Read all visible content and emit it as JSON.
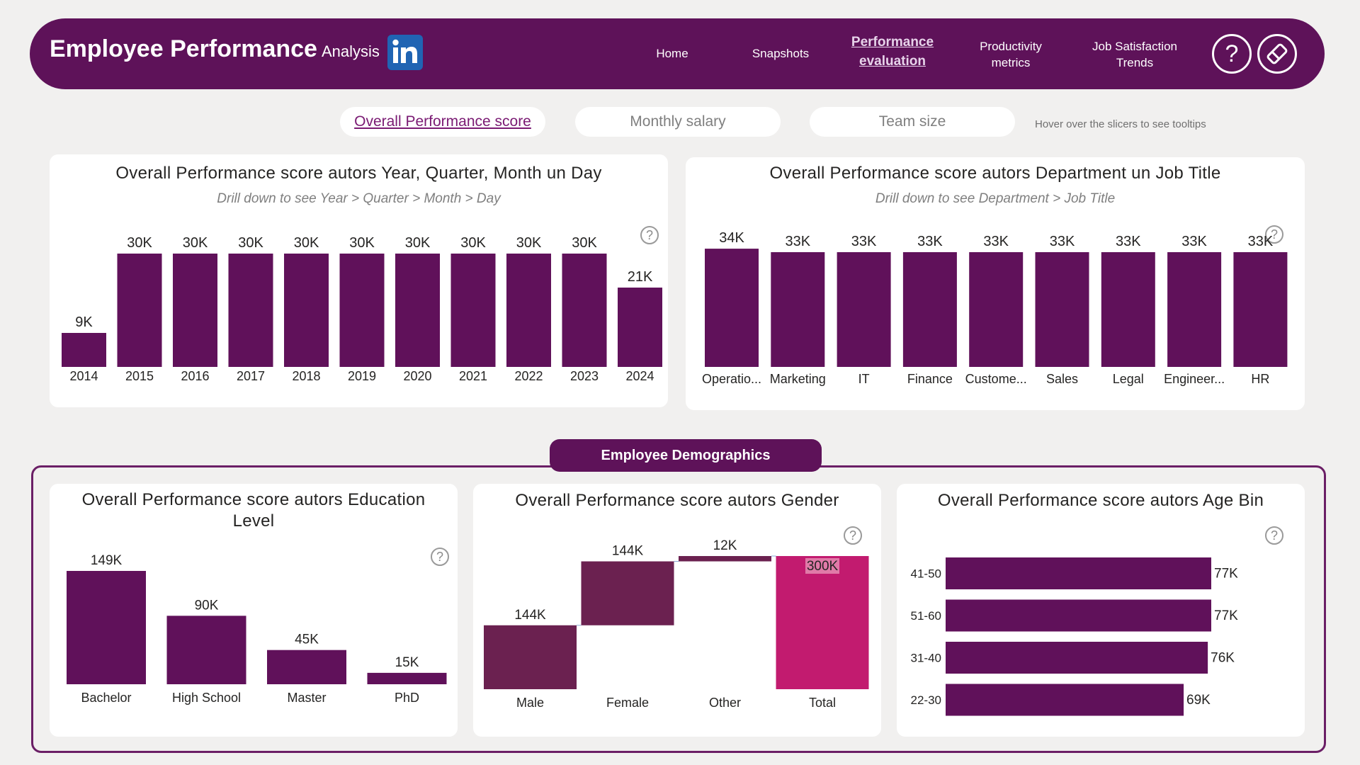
{
  "header": {
    "title_bold": "Employee Performance",
    "title_light": "Analysis",
    "nav": [
      {
        "label": "Home"
      },
      {
        "label": "Snapshots"
      },
      {
        "label": "Performance evaluation",
        "line1": "Performance",
        "line2": "evaluation"
      },
      {
        "label": "Productivity metrics",
        "line1": "Productivity",
        "line2": "metrics"
      },
      {
        "label": "Job Satisfaction Trends",
        "line1": "Job Satisfaction",
        "line2": "Trends"
      }
    ],
    "help_glyph": "?",
    "icons": [
      "linkedin-icon",
      "help-icon",
      "eraser-icon"
    ]
  },
  "slicers": {
    "items": [
      "Overall Performance score",
      "Monthly salary",
      "Team size"
    ],
    "hint": "Hover over the slicers to see tooltips"
  },
  "section_label": "Employee Demographics",
  "colors": {
    "header": "#5e1259",
    "bar": "#60115a",
    "waterfall_decrease": "#6b2150",
    "waterfall_total": "#c21b6f"
  },
  "charts": {
    "year": {
      "title": "Overall Performance score autors Year, Quarter, Month un Day",
      "subtitle": "Drill down to see Year > Quarter > Month > Day"
    },
    "department": {
      "title": "Overall Performance score autors Department un Job Title",
      "subtitle": "Drill down to see Department > Job Title"
    },
    "education": {
      "title_line1": "Overall Performance score autors Education",
      "title_line2": "Level"
    },
    "gender": {
      "title": "Overall Performance score autors Gender"
    },
    "age": {
      "title": "Overall Performance score autors Age Bin"
    }
  },
  "chart_data": [
    {
      "type": "bar",
      "title": "Overall Performance score autors Year, Quarter, Month un Day",
      "categories": [
        "2014",
        "2015",
        "2016",
        "2017",
        "2018",
        "2019",
        "2020",
        "2021",
        "2022",
        "2023",
        "2024"
      ],
      "values": [
        9000,
        30000,
        30000,
        30000,
        30000,
        30000,
        30000,
        30000,
        30000,
        30000,
        21000
      ],
      "labels": [
        "9K",
        "30K",
        "30K",
        "30K",
        "30K",
        "30K",
        "30K",
        "30K",
        "30K",
        "30K",
        "21K"
      ]
    },
    {
      "type": "bar",
      "title": "Overall Performance score autors Department un Job Title",
      "categories": [
        "Operatio...",
        "Marketing",
        "IT",
        "Finance",
        "Custome...",
        "Sales",
        "Legal",
        "Engineer...",
        "HR"
      ],
      "values": [
        34000,
        33000,
        33000,
        33000,
        33000,
        33000,
        33000,
        33000,
        33000
      ],
      "labels": [
        "34K",
        "33K",
        "33K",
        "33K",
        "33K",
        "33K",
        "33K",
        "33K",
        "33K"
      ]
    },
    {
      "type": "bar",
      "title": "Overall Performance score autors Education Level",
      "categories": [
        "Bachelor",
        "High School",
        "Master",
        "PhD"
      ],
      "values": [
        149000,
        90000,
        45000,
        15000
      ],
      "labels": [
        "149K",
        "90K",
        "45K",
        "15K"
      ]
    },
    {
      "type": "waterfall",
      "title": "Overall Performance score autors Gender",
      "categories": [
        "Male",
        "Female",
        "Other",
        "Total"
      ],
      "values": [
        144000,
        144000,
        12000,
        300000
      ],
      "labels": [
        "144K",
        "144K",
        "12K",
        "300K"
      ]
    },
    {
      "type": "bar",
      "orientation": "horizontal",
      "title": "Overall Performance score autors Age Bin",
      "categories": [
        "41-50",
        "51-60",
        "31-40",
        "22-30"
      ],
      "values": [
        77000,
        77000,
        76000,
        69000
      ],
      "labels": [
        "77K",
        "77K",
        "76K",
        "69K"
      ]
    }
  ]
}
